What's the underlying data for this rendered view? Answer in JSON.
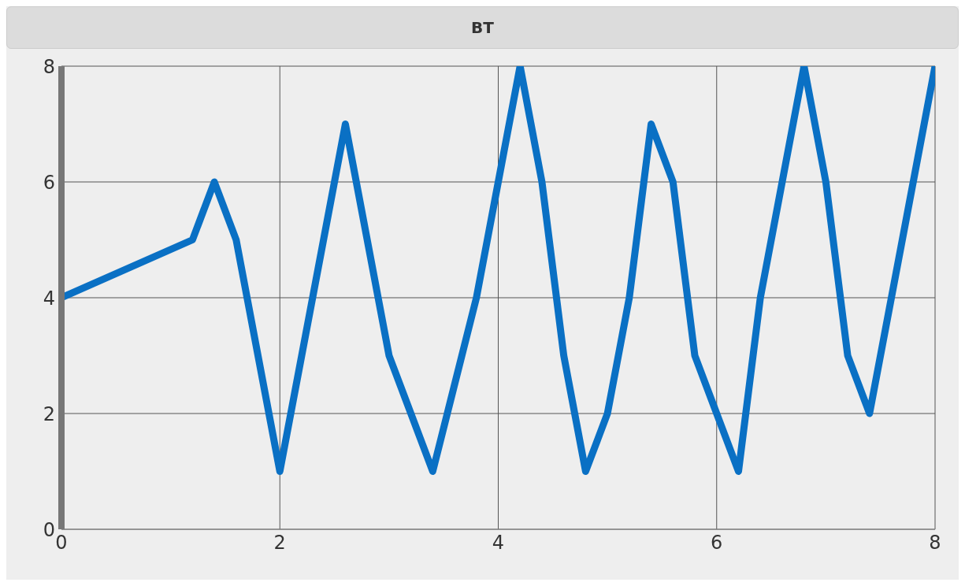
{
  "chart_data": {
    "type": "line",
    "title": "BT",
    "x": [
      0,
      1.2,
      1.4,
      1.6,
      2,
      2.6,
      3,
      3.4,
      3.8,
      4.2,
      4.4,
      4.6,
      4.8,
      5,
      5.2,
      5.4,
      5.6,
      5.8,
      6.2,
      6.4,
      6.8,
      7,
      7.2,
      7.4,
      8
    ],
    "series": [
      {
        "color": "#0a70c4",
        "values": [
          4,
          5,
          6,
          5,
          1,
          7,
          3,
          1,
          4,
          8,
          6,
          3,
          1,
          2,
          4,
          7,
          6,
          3,
          1,
          4,
          8,
          6,
          3,
          2,
          8
        ]
      }
    ],
    "xlim": [
      0,
      8
    ],
    "xticks": [
      0,
      2,
      4,
      6,
      8
    ],
    "ylim": [
      0,
      8
    ],
    "yticks": [
      0,
      2,
      4,
      6,
      8
    ],
    "grid": true,
    "marker": "none",
    "line_style": "solid"
  }
}
